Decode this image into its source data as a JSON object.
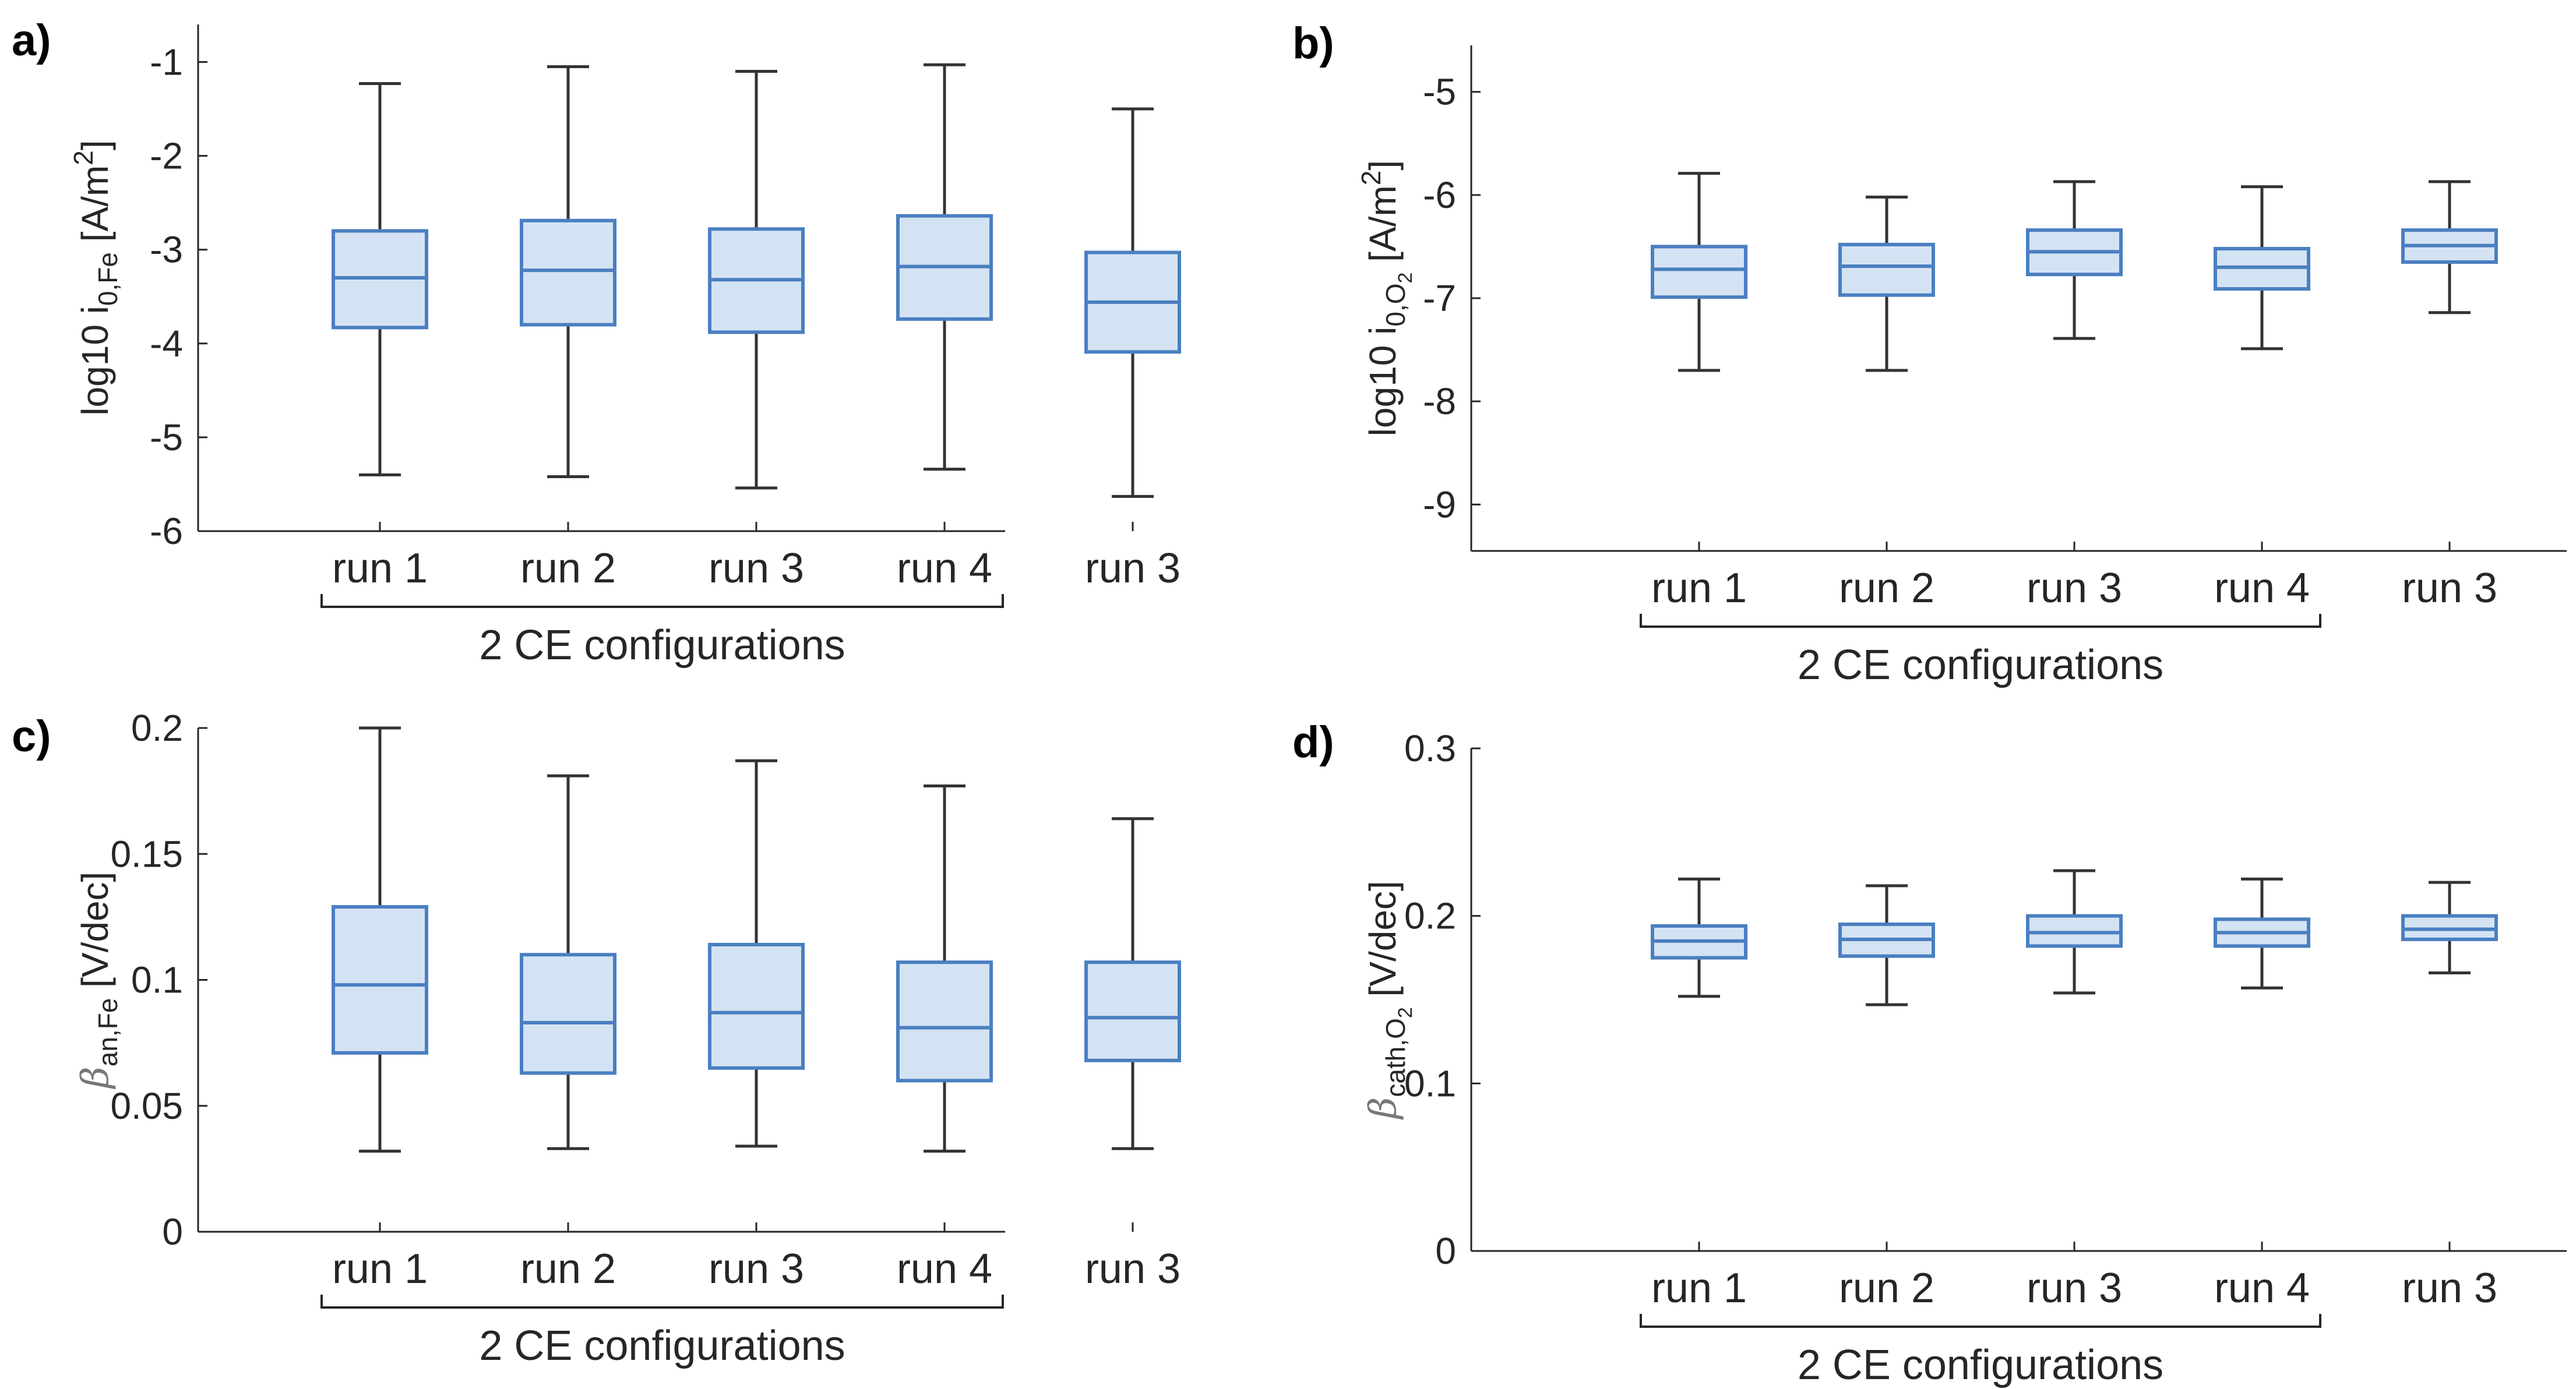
{
  "colors": {
    "box_fill": "#d4e3f3",
    "box_edge": "#4a7fc1",
    "whisker": "#333333",
    "axis": "#262626"
  },
  "chart_data": [
    {
      "type": "box",
      "panel_label": "a)",
      "ylabel": {
        "main": "log10 i",
        "sub": "0,Fe",
        "unit": " [A/m",
        "sup": "2",
        "close": "]"
      },
      "ylim": [
        -6,
        -0.6
      ],
      "yticks": [
        -6,
        -5,
        -4,
        -3,
        -2,
        -1
      ],
      "ytick_labels": [
        "-6",
        "-5",
        "-4",
        "-3",
        "-2",
        "-1"
      ],
      "categories": [
        "run 1",
        "run 2",
        "run 3",
        "run 4",
        "run 3"
      ],
      "group_label": "2 CE configurations",
      "boxes": [
        {
          "min": -5.4,
          "q1": -3.83,
          "median": -3.3,
          "q3": -2.8,
          "max": -1.23
        },
        {
          "min": -5.42,
          "q1": -3.8,
          "median": -3.22,
          "q3": -2.69,
          "max": -1.05
        },
        {
          "min": -5.54,
          "q1": -3.88,
          "median": -3.32,
          "q3": -2.78,
          "max": -1.1
        },
        {
          "min": -5.34,
          "q1": -3.74,
          "median": -3.18,
          "q3": -2.64,
          "max": -1.03
        },
        {
          "min": -5.63,
          "q1": -4.09,
          "median": -3.56,
          "q3": -3.03,
          "max": -1.5
        }
      ]
    },
    {
      "type": "box",
      "panel_label": "b)",
      "ylabel": {
        "main": "log10 i",
        "sub": "0,O",
        "subsub": "2",
        "unit": " [A/m",
        "sup": "2",
        "close": "]"
      },
      "ylim": [
        -9.45,
        -4.55
      ],
      "yticks": [
        -9,
        -8,
        -7,
        -6,
        -5
      ],
      "ytick_labels": [
        "-9",
        "-8",
        "-7",
        "-6",
        "-5"
      ],
      "categories": [
        "run 1",
        "run 2",
        "run 3",
        "run 4",
        "run 3"
      ],
      "group_label": "2 CE configurations",
      "boxes": [
        {
          "min": -7.7,
          "q1": -6.99,
          "median": -6.72,
          "q3": -6.5,
          "max": -5.79
        },
        {
          "min": -7.7,
          "q1": -6.97,
          "median": -6.69,
          "q3": -6.48,
          "max": -6.02
        },
        {
          "min": -7.39,
          "q1": -6.77,
          "median": -6.55,
          "q3": -6.34,
          "max": -5.87
        },
        {
          "min": -7.49,
          "q1": -6.91,
          "median": -6.7,
          "q3": -6.52,
          "max": -5.92
        },
        {
          "min": -7.14,
          "q1": -6.65,
          "median": -6.49,
          "q3": -6.34,
          "max": -5.87
        }
      ]
    },
    {
      "type": "box",
      "panel_label": "c)",
      "ylabel": {
        "greek": "β",
        "sub": "an,Fe",
        "unit": " [V/dec]"
      },
      "ylim": [
        0,
        0.2
      ],
      "yticks": [
        0,
        0.05,
        0.1,
        0.15,
        0.2
      ],
      "ytick_labels": [
        "0",
        "0.05",
        "0.1",
        "0.15",
        "0.2"
      ],
      "categories": [
        "run 1",
        "run 2",
        "run 3",
        "run 4",
        "run 3"
      ],
      "group_label": "2 CE configurations",
      "boxes": [
        {
          "min": 0.032,
          "q1": 0.071,
          "median": 0.098,
          "q3": 0.129,
          "max": 0.2
        },
        {
          "min": 0.033,
          "q1": 0.063,
          "median": 0.083,
          "q3": 0.11,
          "max": 0.181
        },
        {
          "min": 0.034,
          "q1": 0.065,
          "median": 0.087,
          "q3": 0.114,
          "max": 0.187
        },
        {
          "min": 0.032,
          "q1": 0.06,
          "median": 0.081,
          "q3": 0.107,
          "max": 0.177
        },
        {
          "min": 0.033,
          "q1": 0.068,
          "median": 0.085,
          "q3": 0.107,
          "max": 0.164
        }
      ]
    },
    {
      "type": "box",
      "panel_label": "d)",
      "ylabel": {
        "greek": "β",
        "sub": "cath,O",
        "subsub": "2",
        "unit": " [V/dec]"
      },
      "ylim": [
        0,
        0.3
      ],
      "yticks": [
        0,
        0.1,
        0.2,
        0.3
      ],
      "ytick_labels": [
        "0",
        "0.1",
        "0.2",
        "0.3"
      ],
      "categories": [
        "run 1",
        "run 2",
        "run 3",
        "run 4",
        "run 3"
      ],
      "group_label": "2 CE configurations",
      "boxes": [
        {
          "min": 0.152,
          "q1": 0.175,
          "median": 0.185,
          "q3": 0.194,
          "max": 0.222
        },
        {
          "min": 0.147,
          "q1": 0.176,
          "median": 0.186,
          "q3": 0.195,
          "max": 0.218
        },
        {
          "min": 0.154,
          "q1": 0.182,
          "median": 0.19,
          "q3": 0.2,
          "max": 0.227
        },
        {
          "min": 0.157,
          "q1": 0.182,
          "median": 0.19,
          "q3": 0.198,
          "max": 0.222
        },
        {
          "min": 0.166,
          "q1": 0.186,
          "median": 0.192,
          "q3": 0.2,
          "max": 0.22
        }
      ]
    }
  ]
}
